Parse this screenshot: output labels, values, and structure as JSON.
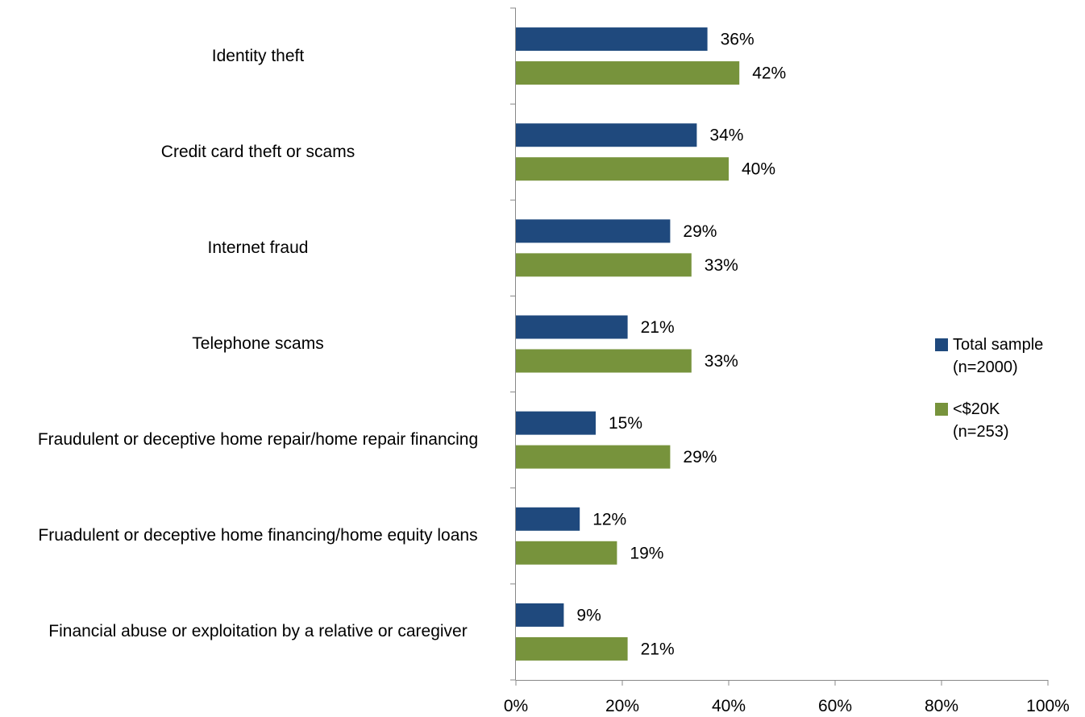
{
  "chart_data": {
    "type": "bar",
    "orientation": "horizontal",
    "categories": [
      "Identity theft",
      "Credit card theft or scams",
      "Internet fraud",
      "Telephone scams",
      "Fraudulent or deceptive home repair/home repair financing",
      "Fruadulent or deceptive home financing/home equity loans",
      "Financial abuse or exploitation by a relative or caregiver"
    ],
    "series": [
      {
        "name": "Total sample (n=2000)",
        "legend_lines": [
          "Total sample",
          "(n=2000)"
        ],
        "color": "#1F497D",
        "values": [
          36,
          34,
          29,
          21,
          15,
          12,
          9
        ]
      },
      {
        "name": "<$20K (n=253)",
        "legend_lines": [
          "<$20K",
          "(n=253)"
        ],
        "color": "#77933C",
        "values": [
          42,
          40,
          33,
          33,
          29,
          19,
          21
        ]
      }
    ],
    "value_suffix": "%",
    "xlim": [
      0,
      100
    ],
    "xticks": [
      "0%",
      "20%",
      "40%",
      "60%",
      "80%",
      "100%"
    ],
    "grid": false,
    "legend_position": "right"
  }
}
